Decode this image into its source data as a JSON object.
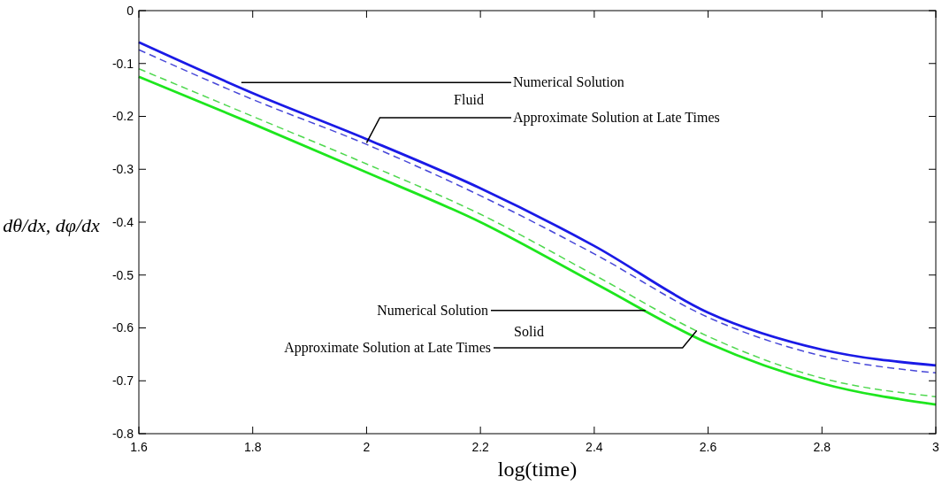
{
  "chart_data": {
    "type": "line",
    "xlabel": "log(time)",
    "ylabel": "dθ/dx, dφ/dx",
    "x": [
      1.6,
      1.8,
      2.0,
      2.2,
      2.4,
      2.6,
      2.8,
      3.0
    ],
    "xlim": [
      1.6,
      3
    ],
    "xticks": [
      1.6,
      1.8,
      2,
      2.2,
      2.4,
      2.6,
      2.8,
      3
    ],
    "ylim": [
      -0.8,
      0
    ],
    "yticks": [
      -0.8,
      -0.7,
      -0.6,
      -0.5,
      -0.4,
      -0.3,
      -0.2,
      -0.1,
      0
    ],
    "grid": false,
    "series": [
      {
        "color": "#1a1ae6",
        "line_style": "solid",
        "values": [
          -0.06,
          -0.156,
          -0.243,
          -0.336,
          -0.445,
          -0.571,
          -0.641,
          -0.671
        ]
      },
      {
        "color": "#4848d8",
        "line_style": "dashed",
        "values": [
          -0.074,
          -0.168,
          -0.253,
          -0.35,
          -0.46,
          -0.58,
          -0.653,
          -0.685
        ]
      },
      {
        "color": "#1ee61e",
        "line_style": "solid",
        "values": [
          -0.125,
          -0.214,
          -0.306,
          -0.4,
          -0.515,
          -0.629,
          -0.705,
          -0.745
        ]
      },
      {
        "color": "#50d850",
        "line_style": "dashed",
        "values": [
          -0.11,
          -0.2,
          -0.29,
          -0.385,
          -0.5,
          -0.616,
          -0.695,
          -0.73
        ]
      }
    ],
    "annotations": [
      {
        "text": "Numerical Solution",
        "x": 1.78,
        "y": -0.136
      },
      "Fluid",
      {
        "text": "Approximate Solution at Late Times",
        "x": 2.0,
        "y": -0.25
      },
      {
        "text": "Numerical Solution",
        "x": 2.49,
        "y": -0.567
      },
      "Solid",
      {
        "text": "Approximate Solution at Late Times",
        "x": 2.58,
        "y": -0.605
      }
    ]
  }
}
